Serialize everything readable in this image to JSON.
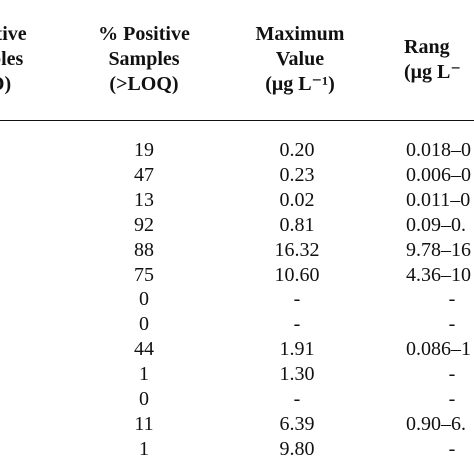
{
  "table": {
    "headers": [
      {
        "lines": [
          "itive",
          "ples",
          "D)"
        ]
      },
      {
        "lines": [
          "% Positive",
          "Samples",
          "(>LOQ)"
        ]
      },
      {
        "lines": [
          "Maximum",
          "Value",
          "(μg L⁻¹)"
        ]
      },
      {
        "lines": [
          "Rang",
          "(μg L⁻"
        ]
      }
    ],
    "columns": [
      "positive_pct",
      "maximum",
      "range"
    ],
    "rows": [
      {
        "positive_pct": "19",
        "maximum": "0.20",
        "range": "0.018–0"
      },
      {
        "positive_pct": "47",
        "maximum": "0.23",
        "range": "0.006–0"
      },
      {
        "positive_pct": "13",
        "maximum": "0.02",
        "range": "0.011–0"
      },
      {
        "positive_pct": "92",
        "maximum": "0.81",
        "range": "0.09–0."
      },
      {
        "positive_pct": "88",
        "maximum": "16.32",
        "range": "9.78–16"
      },
      {
        "positive_pct": "75",
        "maximum": "10.60",
        "range": "4.36–10"
      },
      {
        "positive_pct": "0",
        "maximum": "-",
        "range": "-"
      },
      {
        "positive_pct": "0",
        "maximum": "-",
        "range": "-"
      },
      {
        "positive_pct": "44",
        "maximum": "1.91",
        "range": "0.086–1"
      },
      {
        "positive_pct": "1",
        "maximum": "1.30",
        "range": "-"
      },
      {
        "positive_pct": "0",
        "maximum": "-",
        "range": "-"
      },
      {
        "positive_pct": "11",
        "maximum": "6.39",
        "range": "0.90–6."
      },
      {
        "positive_pct": "1",
        "maximum": "9.80",
        "range": "-"
      }
    ]
  }
}
